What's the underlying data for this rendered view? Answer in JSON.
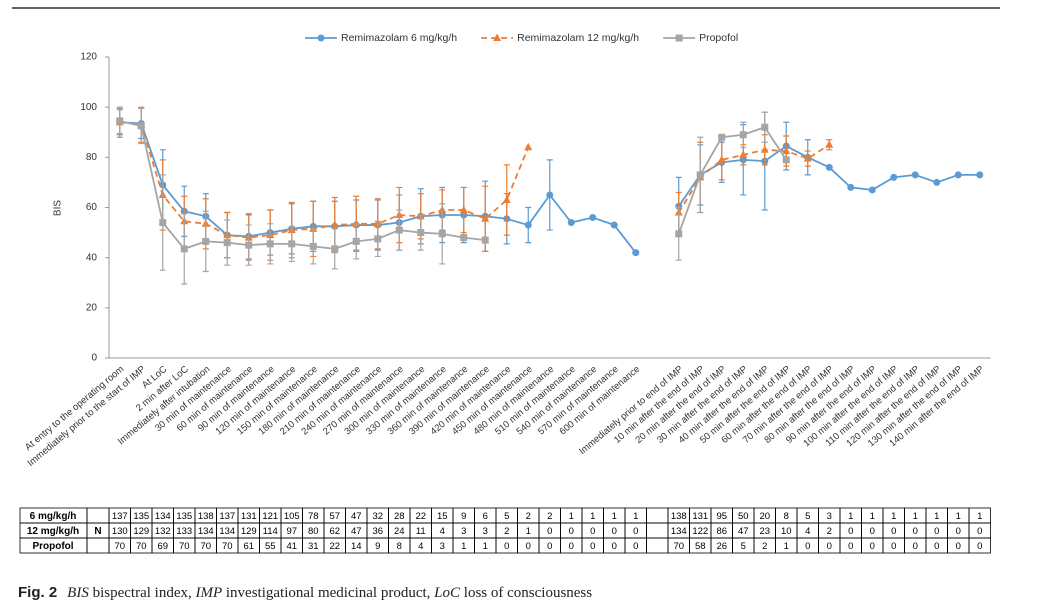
{
  "chart_data": {
    "type": "line",
    "y_label": "BIS",
    "ylim": [
      0,
      120
    ],
    "yticks": [
      0,
      20,
      40,
      60,
      80,
      100,
      120
    ],
    "grid": false,
    "legend": "top",
    "categories": [
      "At entry to the operating room",
      "Immediately prior to the start of IMP",
      "At LoC",
      "2 min after LoC",
      "Immediately after intubation",
      "30 min of maintenance",
      "60 min of maintenance",
      "90 min of maintenance",
      "120 min of maintenance",
      "150 min of maintenance",
      "180 min of maintenance",
      "210 min of maintenance",
      "240 min of maintenance",
      "270 min of maintenance",
      "300 min of maintenance",
      "330 min of maintenance",
      "360 min of maintenance",
      "390 min of maintenance",
      "420 min of maintenance",
      "450 min of maintenance",
      "480 min of maintenance",
      "510 min of maintenance",
      "540 min of maintenance",
      "570 min of maintenance",
      "600 min of maintenance",
      null,
      "Immediately prior to end of IMP",
      "10 min after the end of IMP",
      "20 min after the end of IMP",
      "30 min after the end of IMP",
      "40 min after the end of IMP",
      "50 min after the end of IMP",
      "60 min after the end of IMP",
      "70 min after the end of IMP",
      "80 min after the end of IMP",
      "90 min after the end of IMP",
      "100 min after the end of IMP",
      "110 min after the end of IMP",
      "120 min after the end of IMP",
      "130 min after the end of IMP",
      "140 min after the end of IMP"
    ],
    "series": [
      {
        "name": "Remimazolam 6 mg/kg/h",
        "color": "#5b9bd5",
        "marker": "circle",
        "dashed": false,
        "values": [
          94,
          93.5,
          69,
          58.5,
          56.5,
          49,
          48.5,
          50,
          51.5,
          52.5,
          52.5,
          53,
          53,
          54,
          56.5,
          57,
          57,
          56.5,
          55.5,
          53,
          65,
          54,
          56,
          53,
          42,
          null,
          60.5,
          73,
          78,
          79,
          78.5,
          84.5,
          80,
          76,
          68,
          67,
          72,
          73,
          70,
          73,
          73
        ],
        "errors": [
          5,
          6,
          14,
          10,
          9,
          9,
          9,
          9,
          10,
          10,
          10,
          10,
          10,
          11,
          11,
          11,
          11,
          14,
          10,
          7,
          14,
          null,
          null,
          null,
          null,
          null,
          11.5,
          12,
          8,
          14,
          19.5,
          9.5,
          7,
          null,
          null,
          null,
          null,
          null,
          null,
          null,
          null
        ]
      },
      {
        "name": "Remimazolam 12 mg/kg/h",
        "color": "#ed7d31",
        "marker": "triangle",
        "dashed": true,
        "values": [
          94,
          93,
          65,
          54.5,
          53.5,
          49,
          48,
          49,
          51,
          51.5,
          53,
          53.5,
          53.5,
          57,
          56.5,
          59,
          59,
          55.5,
          63,
          84,
          null,
          null,
          null,
          null,
          null,
          null,
          58,
          72,
          79,
          81,
          83,
          82.5,
          79.5,
          85,
          null,
          null,
          null,
          null,
          null,
          null,
          null
        ],
        "errors": [
          6,
          7,
          14,
          10,
          10,
          9,
          9,
          10,
          11,
          11,
          11,
          11,
          10,
          11,
          9,
          8,
          9,
          13,
          14,
          null,
          null,
          null,
          null,
          null,
          null,
          null,
          8,
          14,
          8,
          4,
          6,
          6,
          3,
          2,
          null,
          null,
          null,
          null,
          null,
          null,
          null
        ]
      },
      {
        "name": "Propofol",
        "color": "#a5a5a5",
        "marker": "square",
        "dashed": false,
        "values": [
          94.5,
          92.5,
          54,
          43.5,
          46.5,
          46,
          45,
          45.5,
          45.5,
          44.5,
          43.5,
          46.5,
          47.5,
          51,
          50,
          49.5,
          48,
          47,
          null,
          null,
          null,
          null,
          null,
          null,
          null,
          null,
          49.5,
          73,
          88,
          89,
          92,
          79,
          null,
          null,
          null,
          null,
          null,
          null,
          null,
          null,
          null
        ],
        "errors": [
          5,
          7,
          19,
          14,
          12,
          9,
          8,
          8,
          7,
          7,
          8,
          7,
          7,
          8,
          7,
          12,
          null,
          null,
          null,
          null,
          null,
          null,
          null,
          null,
          null,
          null,
          10.5,
          15,
          null,
          5,
          6,
          null,
          null,
          null,
          null,
          null,
          null,
          null,
          null,
          null,
          null
        ]
      }
    ]
  },
  "table": {
    "n_label": "N",
    "rows": [
      {
        "label": "6 mg/kg/h",
        "values": [
          137,
          135,
          134,
          135,
          138,
          137,
          131,
          121,
          105,
          78,
          57,
          47,
          32,
          28,
          22,
          15,
          9,
          6,
          5,
          2,
          2,
          1,
          1,
          1,
          1,
          null,
          138,
          131,
          95,
          50,
          20,
          8,
          5,
          3,
          1,
          1,
          1,
          1,
          1,
          1,
          1
        ]
      },
      {
        "label": "12 mg/kg/h",
        "values": [
          130,
          129,
          132,
          133,
          134,
          134,
          129,
          114,
          97,
          80,
          62,
          47,
          36,
          24,
          11,
          4,
          3,
          3,
          2,
          1,
          0,
          0,
          0,
          0,
          0,
          null,
          134,
          122,
          86,
          47,
          23,
          10,
          4,
          2,
          0,
          0,
          0,
          0,
          0,
          0,
          0
        ]
      },
      {
        "label": "Propofol",
        "values": [
          70,
          70,
          69,
          70,
          70,
          70,
          61,
          55,
          41,
          31,
          22,
          14,
          9,
          8,
          4,
          3,
          1,
          1,
          0,
          0,
          0,
          0,
          0,
          0,
          0,
          null,
          70,
          58,
          26,
          5,
          2,
          1,
          0,
          0,
          0,
          0,
          0,
          0,
          0,
          0,
          0
        ]
      }
    ]
  },
  "caption": {
    "figure": "Fig. 2",
    "parts": [
      "BIS",
      " bispectral index, ",
      "IMP",
      " investigational medicinal product, ",
      "LoC",
      " loss of consciousness"
    ]
  }
}
